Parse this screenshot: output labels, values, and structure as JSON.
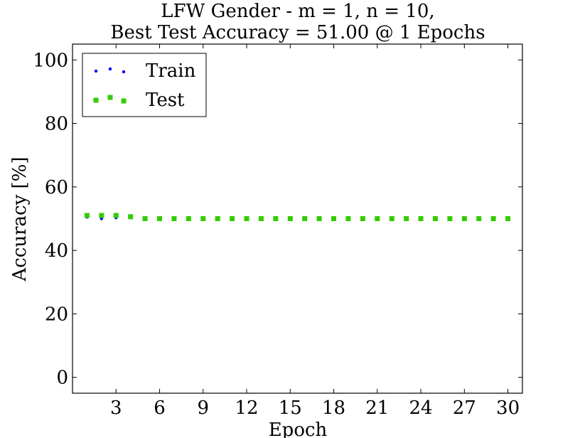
{
  "chart_data": {
    "type": "line",
    "title_line1": "LFW Gender - m = 1, n = 10,",
    "title_line2": "Best Test Accuracy = 51.00 @ 1 Epochs",
    "xlabel": "Epoch",
    "ylabel": "Accuracy [%]",
    "xlim": [
      0,
      31
    ],
    "ylim": [
      -5,
      105
    ],
    "xticks": [
      3,
      6,
      9,
      12,
      15,
      18,
      21,
      24,
      27,
      30
    ],
    "yticks": [
      0,
      20,
      40,
      60,
      80,
      100
    ],
    "grid": false,
    "legend_position": "top-left",
    "series": [
      {
        "name": "Train",
        "color": "#0000ff",
        "marker": "dot",
        "x": [
          1,
          2,
          3,
          4
        ],
        "y": [
          50.5,
          50.0,
          50.3,
          50.3
        ]
      },
      {
        "name": "Test",
        "color": "#33cc00",
        "marker": "square",
        "x": [
          1,
          2,
          3,
          4,
          5,
          6,
          7,
          8,
          9,
          10,
          11,
          12,
          13,
          14,
          15,
          16,
          17,
          18,
          19,
          20,
          21,
          22,
          23,
          24,
          25,
          26,
          27,
          28,
          29,
          30
        ],
        "y": [
          51.0,
          51.0,
          51.0,
          50.6,
          50.0,
          50.0,
          50.0,
          50.0,
          50.0,
          50.0,
          50.0,
          50.0,
          50.0,
          50.0,
          50.0,
          50.0,
          50.0,
          50.0,
          50.0,
          50.0,
          50.0,
          50.0,
          50.0,
          50.0,
          50.0,
          50.0,
          50.0,
          50.0,
          50.0,
          50.0
        ]
      }
    ]
  }
}
